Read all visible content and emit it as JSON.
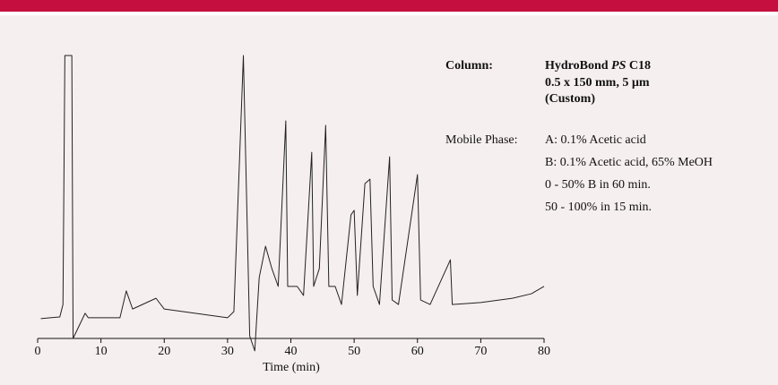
{
  "chart_data": {
    "type": "line",
    "xlabel": "Time (min)",
    "x": [
      0.5,
      2,
      3.5,
      4,
      4.3,
      5.4,
      5.6,
      7.5,
      8,
      13,
      14,
      15,
      18.7,
      20,
      30,
      31,
      32.5,
      33.5,
      34.3,
      35,
      36,
      37,
      38,
      39.2,
      39.5,
      41,
      42,
      43.3,
      43.6,
      44.5,
      45.5,
      46,
      47,
      48,
      49.5,
      50,
      50.5,
      51.7,
      52.5,
      53,
      54,
      55.6,
      56,
      57,
      60,
      60.5,
      62,
      65.2,
      65.5,
      70,
      75,
      78,
      80
    ],
    "values": [
      7.0,
      7.3,
      7.6,
      12.0,
      100,
      100,
      0,
      8.9,
      7.3,
      7.3,
      16.8,
      10.4,
      14.2,
      10.4,
      7.3,
      9.5,
      100,
      0.9,
      -4.4,
      21.5,
      32.6,
      24.7,
      18.4,
      76.9,
      18.4,
      18.4,
      15.2,
      65.8,
      18.4,
      24.7,
      75.3,
      18.4,
      18.4,
      12.0,
      43.7,
      45.3,
      15.2,
      54.7,
      56.3,
      18.4,
      12.0,
      64.2,
      13.6,
      12.0,
      57.9,
      13.6,
      12.0,
      27.8,
      12.0,
      12.7,
      14.2,
      15.8,
      18.4
    ],
    "color": "#222222",
    "xlim": [
      0,
      80
    ],
    "xticks": [
      0,
      10,
      20,
      30,
      40,
      50,
      60,
      70,
      80
    ],
    "ylim": [
      0,
      100
    ],
    "info": {
      "column_label": "Column:",
      "column_name_start": "HydroBond",
      "column_name_italic": "PS",
      "column_name_end": "C18",
      "column_size": "0.5 x 150 mm, 5 µm",
      "column_note": "(Custom)",
      "mobile_label": "Mobile Phase:",
      "mobile_a": "A:  0.1% Acetic acid",
      "mobile_b": "B:  0.1% Acetic acid, 65% MeOH",
      "gradient_1": "0 - 50% B in 60 min.",
      "gradient_2": "50 - 100% in 15 min."
    }
  }
}
